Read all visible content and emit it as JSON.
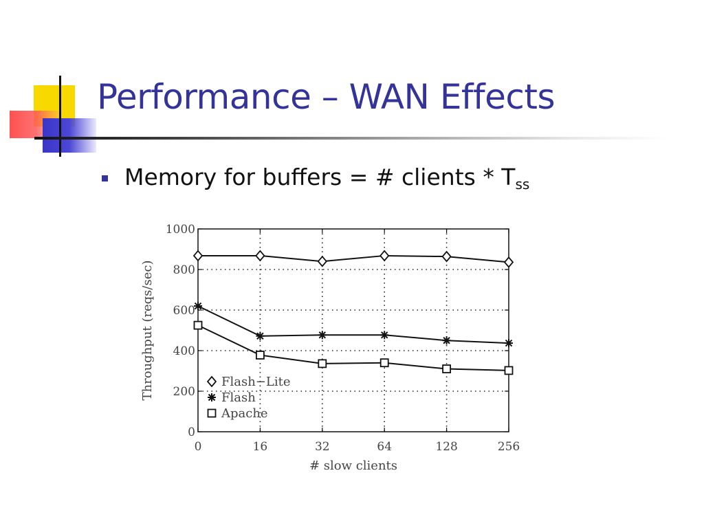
{
  "slide": {
    "title": "Performance – WAN Effects",
    "bullet": {
      "text": "Memory for buffers = # clients * T",
      "subscript": "ss"
    },
    "colors": {
      "title": "#333399",
      "bullet": "#333399"
    }
  },
  "chart_data": {
    "type": "line",
    "categories": [
      "0",
      "16",
      "32",
      "64",
      "128",
      "256"
    ],
    "xlabel": "# slow clients",
    "ylabel": "Throughput (reqs/sec)",
    "ylim": [
      0,
      1000
    ],
    "yticks": [
      0,
      200,
      400,
      600,
      800,
      1000
    ],
    "grid": true,
    "legend_position": "bottom-left",
    "series": [
      {
        "name": "Flash−Lite",
        "marker": "diamond",
        "values": [
          868,
          868,
          840,
          868,
          864,
          836
        ]
      },
      {
        "name": "Flash",
        "marker": "star",
        "values": [
          620,
          472,
          477,
          477,
          450,
          437
        ]
      },
      {
        "name": "Apache",
        "marker": "square",
        "values": [
          525,
          378,
          336,
          340,
          310,
          302
        ]
      }
    ]
  }
}
